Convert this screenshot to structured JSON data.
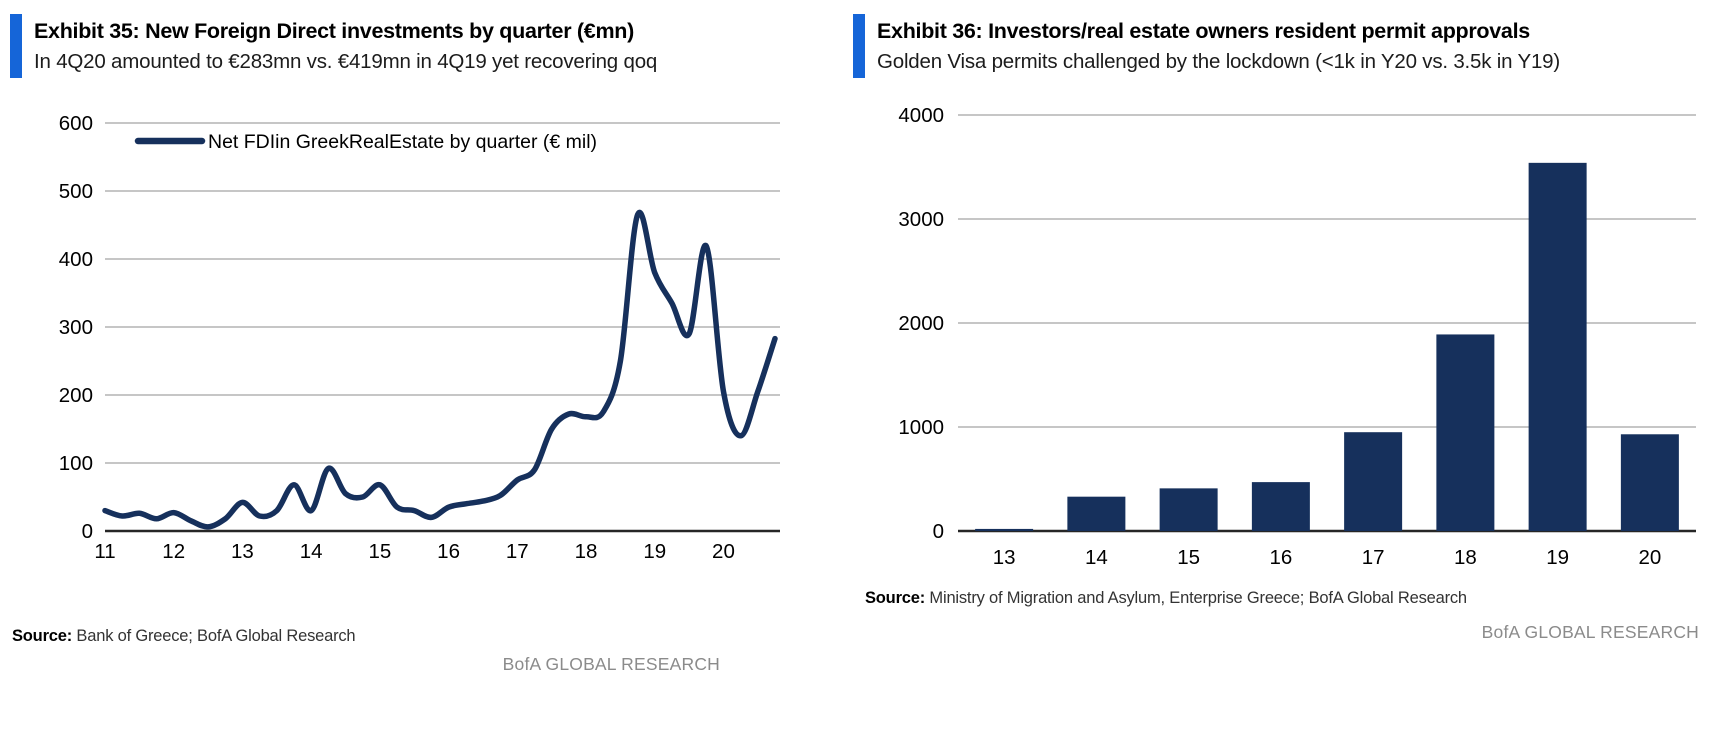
{
  "left_panel": {
    "exhibit_title": "Exhibit 35: New Foreign Direct investments by quarter (€mn)",
    "subtitle": "In 4Q20 amounted to €283mn vs. €419mn in 4Q19 yet recovering qoq",
    "source_label": "Source:",
    "source_text": " Bank of Greece; BofA Global Research",
    "footer": "BofA GLOBAL RESEARCH"
  },
  "right_panel": {
    "exhibit_title": "Exhibit 36: Investors/real estate owners resident permit approvals",
    "subtitle": "Golden Visa permits challenged by the lockdown (<1k in Y20 vs. 3.5k in Y19)",
    "source_label": "Source:",
    "source_text": " Ministry of Migration and Asylum, Enterprise Greece; BofA Global Research",
    "footer": "BofA GLOBAL RESEARCH"
  },
  "colors": {
    "accent_blue": "#1565d8",
    "navy": "#16305c",
    "gridline": "#c6c6c6",
    "axis": "#262626",
    "tick_text": "#000000",
    "footer_gray": "#8b8b8b"
  },
  "chart_data": [
    {
      "type": "line",
      "legend": "Net FDIin GreekRealEstate by quarter (€ mil)",
      "start_quarter": "2011Q1",
      "points_per_year": 4,
      "year_labels": [
        "11",
        "12",
        "13",
        "14",
        "15",
        "16",
        "17",
        "18",
        "19",
        "20"
      ],
      "ylim": [
        0,
        600
      ],
      "ytick_step": 100,
      "values": [
        30,
        22,
        26,
        18,
        27,
        15,
        6,
        18,
        42,
        22,
        30,
        68,
        30,
        92,
        55,
        50,
        68,
        35,
        30,
        20,
        35,
        40,
        44,
        52,
        75,
        90,
        150,
        172,
        168,
        175,
        250,
        465,
        380,
        335,
        290,
        419,
        205,
        140,
        205,
        283
      ]
    },
    {
      "type": "bar",
      "categories": [
        "13",
        "14",
        "15",
        "16",
        "17",
        "18",
        "19",
        "20"
      ],
      "values": [
        20,
        330,
        410,
        470,
        950,
        1890,
        3540,
        930
      ],
      "ylim": [
        0,
        4000
      ],
      "ytick_step": 1000
    }
  ]
}
